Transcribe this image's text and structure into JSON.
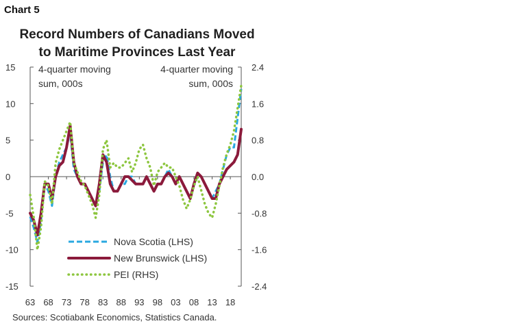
{
  "chart_label": "Chart 5",
  "title_lines": [
    "Record Numbers of Canadians Moved",
    "to Maritime Provinces Last Year"
  ],
  "source": "Sources: Scotiabank Economics, Statistics Canada.",
  "chart_data": {
    "type": "line",
    "title": "Record Numbers of Canadians Moved to Maritime Provinces Last Year",
    "left_axis": {
      "label": "4-quarter moving sum, 000s",
      "min": -15,
      "max": 15,
      "ticks": [
        "15",
        "10",
        "5",
        "0",
        "-5",
        "-10",
        "-15"
      ]
    },
    "right_axis": {
      "label": "4-quarter moving sum, 000s",
      "min": -2.4,
      "max": 2.4,
      "ticks": [
        "2.4",
        "1.6",
        "0.8",
        "0.0",
        "-0.8",
        "-1.6",
        "-2.4"
      ]
    },
    "x_ticks": [
      "63",
      "68",
      "73",
      "78",
      "83",
      "88",
      "93",
      "98",
      "03",
      "08",
      "13",
      "18"
    ],
    "x_range": [
      1963,
      2021
    ],
    "legend_position": "bottom-left",
    "series": [
      {
        "name": "Nova Scotia (LHS)",
        "axis": "left",
        "color": "#29a8e0",
        "style": "dashed",
        "x": [
          1963,
          1964,
          1965,
          1966,
          1967,
          1968,
          1969,
          1970,
          1971,
          1972,
          1973,
          1974,
          1975,
          1976,
          1977,
          1978,
          1979,
          1980,
          1981,
          1982,
          1983,
          1984,
          1985,
          1986,
          1987,
          1988,
          1989,
          1990,
          1991,
          1992,
          1993,
          1994,
          1995,
          1996,
          1997,
          1998,
          1999,
          2000,
          2001,
          2002,
          2003,
          2004,
          2005,
          2006,
          2007,
          2008,
          2009,
          2010,
          2011,
          2012,
          2013,
          2014,
          2015,
          2016,
          2017,
          2018,
          2019,
          2020,
          2021
        ],
        "y": [
          -5.5,
          -7,
          -9,
          -6,
          -1,
          -2,
          -4,
          0,
          2,
          3,
          4,
          6,
          1,
          0,
          -1,
          -1,
          -2,
          -3,
          -4,
          -2,
          2,
          3,
          0,
          -2,
          -2,
          -1,
          -1,
          0,
          0,
          -1,
          -1,
          -1,
          0,
          -1,
          -2,
          -1,
          -1,
          0,
          1,
          0,
          -1,
          0,
          -1,
          -2,
          -3,
          -1,
          0,
          0,
          -1,
          -2,
          -3,
          -2,
          -1,
          1,
          3,
          4,
          4,
          8,
          12
        ]
      },
      {
        "name": "New Brunswick (LHS)",
        "axis": "left",
        "color": "#8b1a3b",
        "style": "solid",
        "x": [
          1963,
          1964,
          1965,
          1966,
          1967,
          1968,
          1969,
          1970,
          1971,
          1972,
          1973,
          1974,
          1975,
          1976,
          1977,
          1978,
          1979,
          1980,
          1981,
          1982,
          1983,
          1984,
          1985,
          1986,
          1987,
          1988,
          1989,
          1990,
          1991,
          1992,
          1993,
          1994,
          1995,
          1996,
          1997,
          1998,
          1999,
          2000,
          2001,
          2002,
          2003,
          2004,
          2005,
          2006,
          2007,
          2008,
          2009,
          2010,
          2011,
          2012,
          2013,
          2014,
          2015,
          2016,
          2017,
          2018,
          2019,
          2020,
          2021
        ],
        "y": [
          -5,
          -6,
          -8,
          -5,
          -1,
          -1,
          -3,
          0,
          1.5,
          2,
          4,
          7,
          2,
          0,
          -1,
          -1,
          -2,
          -3,
          -4,
          -1,
          3,
          2,
          -1,
          -2,
          -2,
          -1,
          0,
          0,
          -0.5,
          -1,
          -1,
          -1,
          0,
          -1,
          -2,
          -1,
          -1,
          0,
          0.5,
          0,
          -1,
          0,
          -1,
          -2,
          -3,
          -1,
          0.5,
          0,
          -1,
          -2,
          -3,
          -3,
          -1,
          0,
          1,
          1.5,
          2,
          3,
          6.5
        ]
      },
      {
        "name": "PEI (RHS)",
        "axis": "right",
        "color": "#8dc63f",
        "style": "dotted",
        "x": [
          1963,
          1964,
          1965,
          1966,
          1967,
          1968,
          1969,
          1970,
          1971,
          1972,
          1973,
          1974,
          1975,
          1976,
          1977,
          1978,
          1979,
          1980,
          1981,
          1982,
          1983,
          1984,
          1985,
          1986,
          1987,
          1988,
          1989,
          1990,
          1991,
          1992,
          1993,
          1994,
          1995,
          1996,
          1997,
          1998,
          1999,
          2000,
          2001,
          2002,
          2003,
          2004,
          2005,
          2006,
          2007,
          2008,
          2009,
          2010,
          2011,
          2012,
          2013,
          2014,
          2015,
          2016,
          2017,
          2018,
          2019,
          2020,
          2021
        ],
        "y": [
          -0.4,
          -0.9,
          -1.6,
          -1.1,
          -0.1,
          -0.2,
          -0.6,
          0.3,
          0.6,
          0.8,
          1.0,
          1.2,
          0.3,
          0.1,
          -0.1,
          -0.2,
          -0.4,
          -0.6,
          -0.9,
          -0.4,
          0.6,
          0.8,
          0.2,
          0.3,
          0.2,
          0.2,
          0.3,
          0.4,
          0.1,
          0.3,
          0.6,
          0.7,
          0.4,
          0.2,
          -0.2,
          0.1,
          0.2,
          0.3,
          0.2,
          0.2,
          0.0,
          -0.2,
          -0.5,
          -0.7,
          -0.5,
          -0.2,
          0.0,
          -0.3,
          -0.6,
          -0.8,
          -0.9,
          -0.6,
          -0.2,
          0.2,
          0.5,
          0.7,
          1.0,
          1.5,
          2.0
        ]
      }
    ]
  }
}
